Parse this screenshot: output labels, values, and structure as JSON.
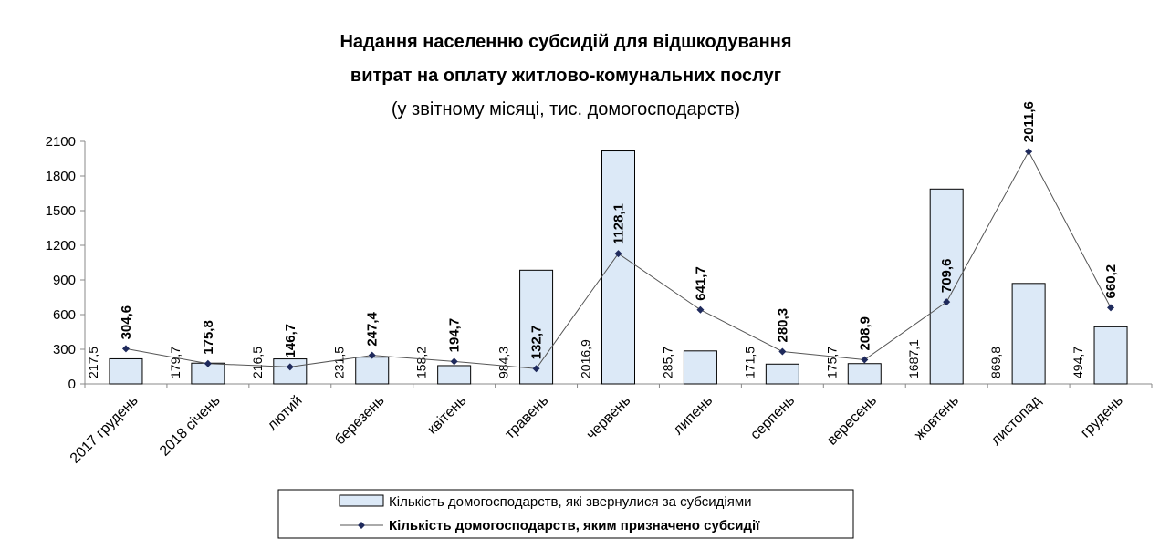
{
  "chart_data": {
    "type": "bar-line",
    "title": [
      "Надання населенню субсидій для відшкодування",
      "витрат на оплату житлово-комунальних послуг"
    ],
    "subtitle": "(у звітному місяці, тис. домогосподарств)",
    "categories": [
      "2017 грудень",
      "2018 січень",
      "лютий",
      "березень",
      "квітень",
      "травень",
      "червень",
      "липень",
      "серпень",
      "вересень",
      "жовтень",
      "листопад",
      "грудень"
    ],
    "series": [
      {
        "name": "Кількість домогосподарств, які звернулися за субсидіями",
        "type": "bar",
        "color": "#dce9f7",
        "values": [
          217.5,
          179.7,
          216.5,
          231.5,
          158.2,
          984.3,
          2016.9,
          285.7,
          171.5,
          175.7,
          1687.1,
          869.8,
          494.7
        ],
        "value_labels": [
          "217,5",
          "179,7",
          "216,5",
          "231,5",
          "158,2",
          "984,3",
          "2016,9",
          "285,7",
          "171,5",
          "175,7",
          "1687,1",
          "869,8",
          "494,7"
        ]
      },
      {
        "name": "Кількість домогосподарств, яким призначено субсидії",
        "type": "line",
        "color": "#1f2a5c",
        "values": [
          304.6,
          175.8,
          146.7,
          247.4,
          194.7,
          132.7,
          1128.1,
          641.7,
          280.3,
          208.9,
          709.6,
          2011.6,
          660.2
        ],
        "value_labels": [
          "304,6",
          "175,8",
          "146,7",
          "247,4",
          "194,7",
          "132,7",
          "1128,1",
          "641,7",
          "280,3",
          "208,9",
          "709,6",
          "2011,6",
          "660,2"
        ]
      }
    ],
    "ylim": [
      0,
      2100
    ],
    "yticks": [
      0,
      300,
      600,
      900,
      1200,
      1500,
      1800,
      2100
    ]
  }
}
